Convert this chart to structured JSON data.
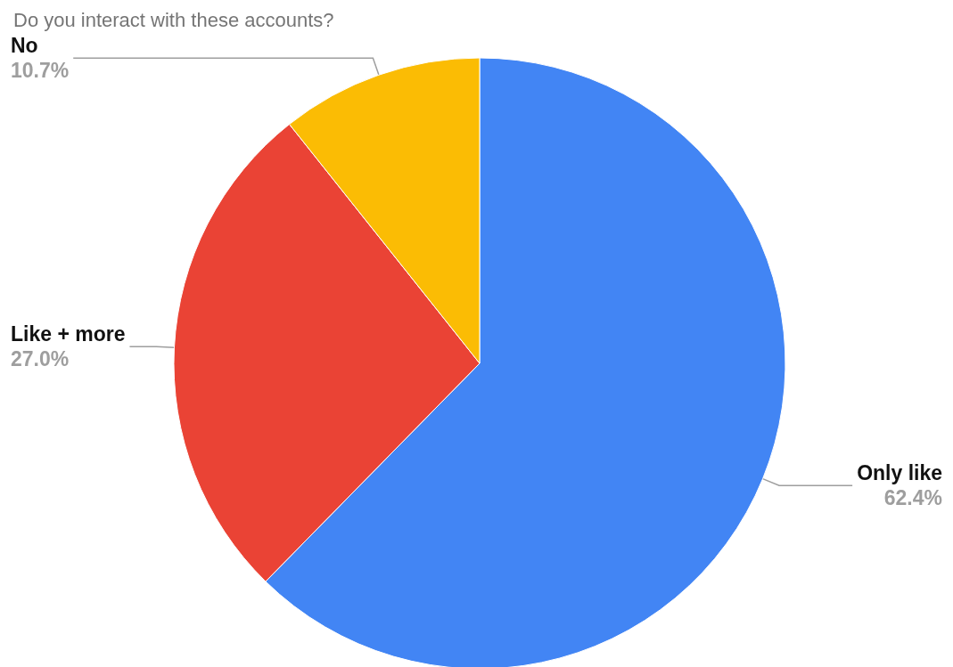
{
  "chart_data": {
    "type": "pie",
    "title": "Do you interact with these accounts?",
    "categories": [
      "Only like",
      "Like + more",
      "No"
    ],
    "values": [
      62.4,
      27.0,
      10.7
    ],
    "colors": [
      "#4285f4",
      "#ea4335",
      "#fbbc04"
    ],
    "value_labels": [
      "62.4%",
      "27.0%",
      "10.7%"
    ]
  }
}
